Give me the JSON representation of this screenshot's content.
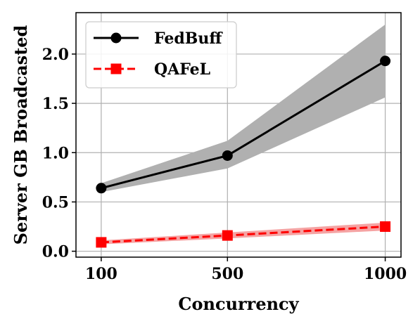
{
  "chart_data": {
    "type": "line",
    "xlabel": "Concurrency",
    "ylabel": "Server GB Broadcasted",
    "x": [
      100,
      500,
      1000
    ],
    "x_tick_labels": [
      "100",
      "500",
      "1000"
    ],
    "y_ticks": [
      0.0,
      0.5,
      1.0,
      1.5,
      2.0
    ],
    "y_tick_labels": [
      "0.0",
      "0.5",
      "1.0",
      "1.5",
      "2.0"
    ],
    "xlim": [
      20,
      1050
    ],
    "ylim": [
      -0.06,
      2.42
    ],
    "grid": true,
    "legend_position": "top-left",
    "series": [
      {
        "name": "FedBuff",
        "values": [
          0.64,
          0.97,
          1.93
        ],
        "band_lower": [
          0.6,
          0.84,
          1.56
        ],
        "band_upper": [
          0.69,
          1.12,
          2.3
        ],
        "color": "#000000",
        "band_color": "#b0b0b0",
        "line_style": "solid",
        "marker": "circle"
      },
      {
        "name": "QAFeL",
        "values": [
          0.09,
          0.16,
          0.25
        ],
        "band_lower": [
          0.07,
          0.13,
          0.21
        ],
        "band_upper": [
          0.11,
          0.19,
          0.29
        ],
        "color": "#ff0000",
        "band_color": "#f5a3a3",
        "line_style": "dashed",
        "marker": "square"
      }
    ]
  }
}
